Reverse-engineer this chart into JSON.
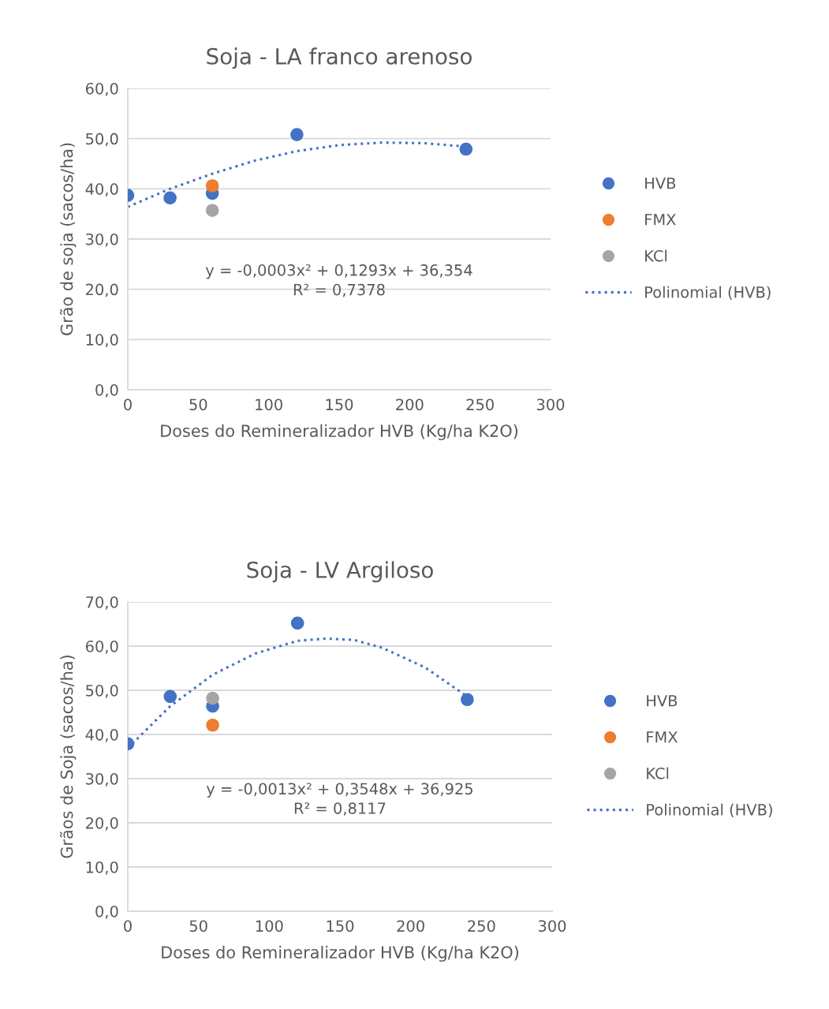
{
  "chart_data": [
    {
      "type": "scatter",
      "title": "Soja - LA franco arenoso",
      "xlabel": "Doses do Remineralizador HVB (Kg/ha K2O)",
      "ylabel": "Grão de soja (sacos/ha)",
      "series": [
        {
          "name": "HVB",
          "color": "#4472c4",
          "x": [
            0,
            30,
            60,
            120,
            240
          ],
          "values": [
            38.7,
            38.2,
            39.1,
            50.8,
            47.9
          ]
        },
        {
          "name": "FMX",
          "color": "#ed7d31",
          "x": [
            60
          ],
          "values": [
            40.6
          ]
        },
        {
          "name": "KCl",
          "color": "#a5a5a5",
          "x": [
            60
          ],
          "values": [
            35.7
          ]
        },
        {
          "name": "Polinomial (HVB)",
          "type": "line",
          "line_style": "dotted",
          "marker": "none",
          "color": "#4472c4",
          "x": [
            0,
            30,
            60,
            90,
            120,
            150,
            180,
            210,
            240
          ],
          "values": [
            36.4,
            40.0,
            43.0,
            45.6,
            47.5,
            48.7,
            49.2,
            49.1,
            48.4
          ]
        }
      ],
      "marker": "circle",
      "xlim": [
        0,
        300
      ],
      "xticks": [
        0,
        50,
        100,
        150,
        200,
        250,
        300
      ],
      "ylim": [
        0,
        60
      ],
      "yticks": [
        {
          "value": 0,
          "label": "0,0"
        },
        {
          "value": 10,
          "label": "10,0"
        },
        {
          "value": 20,
          "label": "20,0"
        },
        {
          "value": 30,
          "label": "30,0"
        },
        {
          "value": 40,
          "label": "40,0"
        },
        {
          "value": 50,
          "label": "50,0"
        },
        {
          "value": 60,
          "label": "60,0"
        }
      ],
      "grid": "y",
      "legend": "right",
      "annotations": [
        "y = -0,0003x² + 0,1293x + 36,354\nR² = 0,7378"
      ]
    },
    {
      "type": "scatter",
      "title": "Soja - LV Argiloso",
      "xlabel": "Doses do Remineralizador HVB (Kg/ha K2O)",
      "ylabel": "Grãos de Soja (sacos/ha)",
      "series": [
        {
          "name": "HVB",
          "color": "#4472c4",
          "x": [
            0,
            30,
            60,
            120,
            240
          ],
          "values": [
            37.9,
            48.6,
            46.4,
            65.2,
            47.9
          ]
        },
        {
          "name": "FMX",
          "color": "#ed7d31",
          "x": [
            60
          ],
          "values": [
            42.1
          ]
        },
        {
          "name": "KCl",
          "color": "#a5a5a5",
          "x": [
            60
          ],
          "values": [
            48.2
          ]
        },
        {
          "name": "Polinomial (HVB)",
          "type": "line",
          "line_style": "dotted",
          "marker": "none",
          "color": "#4472c4",
          "x": [
            0,
            30,
            60,
            90,
            120,
            140,
            160,
            180,
            210,
            240
          ],
          "values": [
            36.9,
            46.4,
            53.5,
            58.3,
            61.2,
            61.7,
            61.4,
            59.6,
            55.2,
            48.6
          ]
        }
      ],
      "marker": "circle",
      "xlim": [
        0,
        300
      ],
      "xticks": [
        0,
        50,
        100,
        150,
        200,
        250,
        300
      ],
      "ylim": [
        0,
        70
      ],
      "yticks": [
        {
          "value": 0,
          "label": "0,0"
        },
        {
          "value": 10,
          "label": "10,0"
        },
        {
          "value": 20,
          "label": "20,0"
        },
        {
          "value": 30,
          "label": "30,0"
        },
        {
          "value": 40,
          "label": "40,0"
        },
        {
          "value": 50,
          "label": "50,0"
        },
        {
          "value": 60,
          "label": "60,0"
        },
        {
          "value": 70,
          "label": "70,0"
        }
      ],
      "grid": "y",
      "legend": "right",
      "annotations": [
        "y = -0,0013x² + 0,3548x + 36,925\nR² = 0,8117"
      ]
    }
  ]
}
